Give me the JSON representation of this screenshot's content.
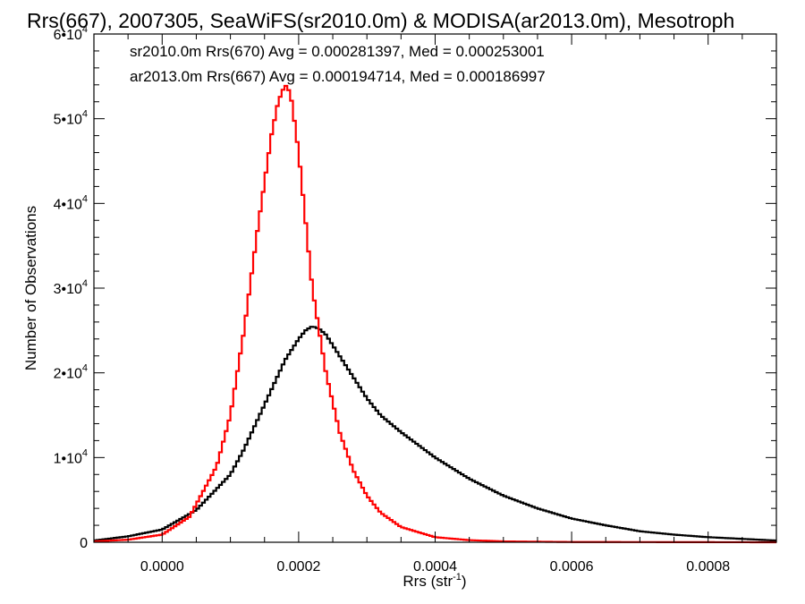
{
  "chart_data": {
    "type": "line",
    "title": "Rrs(667), 2007305, SeaWiFS(sr2010.0m) & MODISA(ar2013.0m), Mesotroph",
    "xlabel": "Rrs (str",
    "xlabel_sup": "-1",
    "xlabel_end": ")",
    "ylabel": "Number of Observations",
    "xlim": [
      -0.0001,
      0.0009
    ],
    "ylim": [
      0,
      60000
    ],
    "x_ticks": [
      {
        "value": 0.0,
        "label": "0.0000"
      },
      {
        "value": 0.0002,
        "label": "0.0002"
      },
      {
        "value": 0.0004,
        "label": "0.0004"
      },
      {
        "value": 0.0006,
        "label": "0.0006"
      },
      {
        "value": 0.0008,
        "label": "0.0008"
      }
    ],
    "y_ticks": [
      {
        "value": 0,
        "mant": "0",
        "exp": ""
      },
      {
        "value": 10000,
        "mant": "1•10",
        "exp": "4"
      },
      {
        "value": 20000,
        "mant": "2•10",
        "exp": "4"
      },
      {
        "value": 30000,
        "mant": "3•10",
        "exp": "4"
      },
      {
        "value": 40000,
        "mant": "4•10",
        "exp": "4"
      },
      {
        "value": 50000,
        "mant": "5•10",
        "exp": "4"
      },
      {
        "value": 60000,
        "mant": "6•10",
        "exp": "4"
      }
    ],
    "series": [
      {
        "name": "sr2010.0m Rrs(670)",
        "legend": "sr2010.0m Rrs(670) Avg = 0.000281397, Med = 0.000253001",
        "color": "#000000",
        "x": [
          -0.0001,
          -5e-05,
          0.0,
          5e-05,
          0.0001,
          0.00012,
          0.00014,
          0.00016,
          0.00018,
          0.0002,
          0.00021,
          0.00022,
          0.00023,
          0.00024,
          0.00026,
          0.00028,
          0.0003,
          0.00032,
          0.00035,
          0.0004,
          0.00045,
          0.0005,
          0.00055,
          0.0006,
          0.00065,
          0.0007,
          0.00075,
          0.0008,
          0.0009
        ],
        "y": [
          200,
          700,
          1500,
          3800,
          8000,
          11000,
          14500,
          18000,
          21500,
          24000,
          25000,
          25500,
          25200,
          24500,
          22000,
          19500,
          17000,
          15000,
          13000,
          10000,
          7500,
          5500,
          4000,
          2800,
          2000,
          1300,
          900,
          600,
          200
        ]
      },
      {
        "name": "ar2013.0m Rrs(667)",
        "legend": "ar2013.0m Rrs(667) Avg = 0.000194714, Med = 0.000186997",
        "color": "#ff0000",
        "x": [
          -0.0001,
          -5e-05,
          0.0,
          4e-05,
          8e-05,
          0.0001,
          0.00012,
          0.00014,
          0.00016,
          0.00017,
          0.00018,
          0.000185,
          0.00019,
          0.0002,
          0.00021,
          0.00022,
          0.00024,
          0.00026,
          0.00028,
          0.0003,
          0.00032,
          0.00035,
          0.0004,
          0.00045,
          0.0005,
          0.0006,
          0.0009
        ],
        "y": [
          100,
          300,
          900,
          3000,
          9000,
          15000,
          25000,
          37000,
          48000,
          52000,
          54000,
          53500,
          52000,
          46000,
          38000,
          30000,
          20000,
          13000,
          8500,
          5500,
          3500,
          1800,
          600,
          250,
          100,
          30,
          0
        ]
      }
    ],
    "grid": false,
    "legend_position": "top-left"
  }
}
